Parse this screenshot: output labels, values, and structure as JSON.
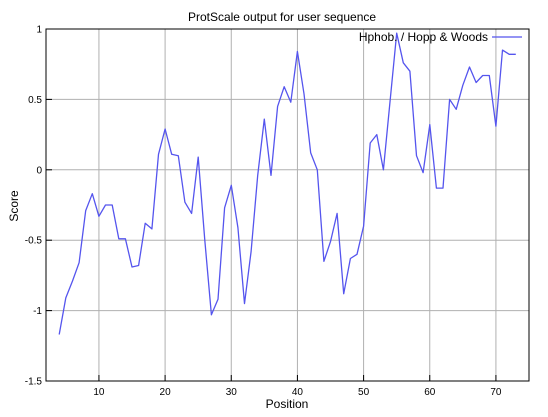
{
  "chart_data": {
    "type": "line",
    "title": "ProtScale output for user sequence",
    "xlabel": "Position",
    "ylabel": "Score",
    "xlim": [
      2,
      75
    ],
    "ylim": [
      -1.5,
      1
    ],
    "xticks": [
      10,
      20,
      30,
      40,
      50,
      60,
      70
    ],
    "yticks": [
      -1.5,
      -1,
      -0.5,
      0,
      0.5,
      1
    ],
    "ytick_labels": [
      "-1.5",
      "-1",
      "-0.5",
      "0",
      "0.5",
      "1"
    ],
    "grid": true,
    "legend_position": "top-right",
    "colors": {
      "series": "#5555ee",
      "grid": "#b0b0b0",
      "axis": "#000000"
    },
    "series": [
      {
        "name": "Hphob. / Hopp & Woods",
        "x": [
          4,
          5,
          6,
          7,
          8,
          9,
          10,
          11,
          12,
          13,
          14,
          15,
          16,
          17,
          18,
          19,
          20,
          21,
          22,
          23,
          24,
          25,
          26,
          27,
          28,
          29,
          30,
          31,
          32,
          33,
          34,
          35,
          36,
          37,
          38,
          39,
          40,
          41,
          42,
          43,
          44,
          45,
          46,
          47,
          48,
          49,
          50,
          51,
          52,
          53,
          54,
          55,
          56,
          57,
          58,
          59,
          60,
          61,
          62,
          63,
          64,
          65,
          66,
          67,
          68,
          69,
          70,
          71,
          72,
          73
        ],
        "values": [
          -1.17,
          -0.91,
          -0.79,
          -0.66,
          -0.29,
          -0.17,
          -0.33,
          -0.25,
          -0.25,
          -0.49,
          -0.49,
          -0.69,
          -0.68,
          -0.38,
          -0.42,
          0.11,
          0.29,
          0.11,
          0.1,
          -0.23,
          -0.31,
          0.09,
          -0.5,
          -1.03,
          -0.92,
          -0.27,
          -0.11,
          -0.41,
          -0.95,
          -0.58,
          -0.04,
          0.36,
          -0.04,
          0.45,
          0.59,
          0.48,
          0.84,
          0.54,
          0.12,
          0.0,
          -0.65,
          -0.51,
          -0.31,
          -0.88,
          -0.63,
          -0.6,
          -0.4,
          0.19,
          0.25,
          0.0,
          0.49,
          0.97,
          0.76,
          0.7,
          0.1,
          -0.02,
          0.32,
          -0.13,
          -0.13,
          0.5,
          0.43,
          0.6,
          0.73,
          0.62,
          0.67,
          0.67,
          0.31,
          0.85,
          0.82,
          0.82
        ]
      }
    ]
  }
}
